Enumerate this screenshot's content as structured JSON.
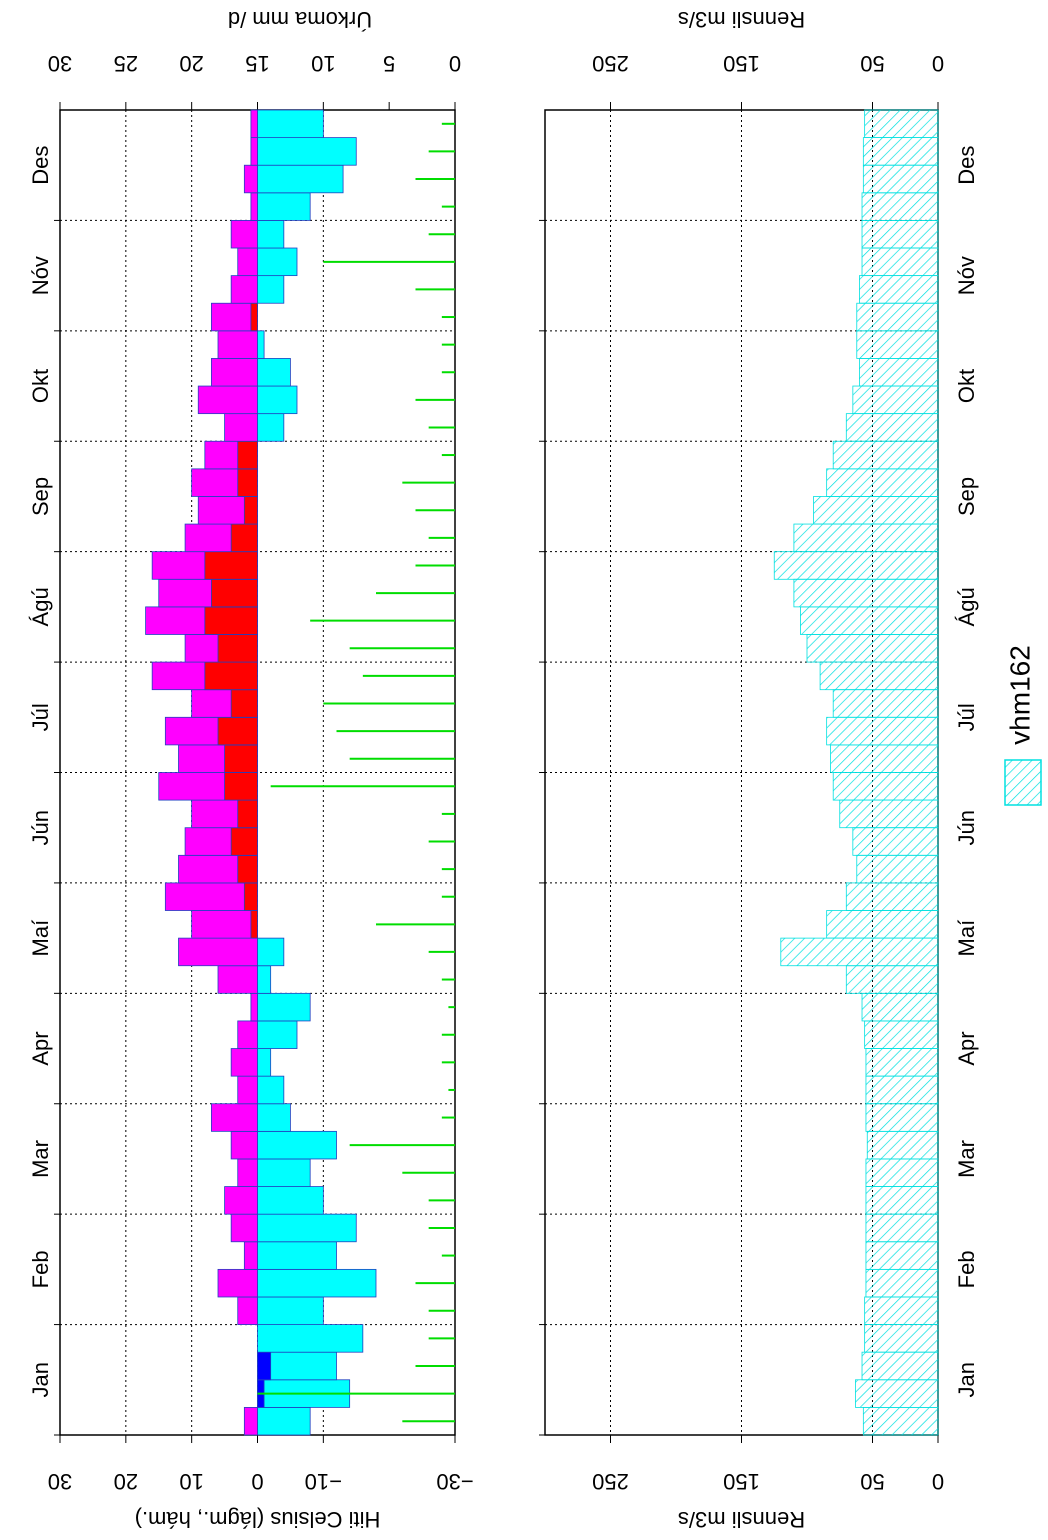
{
  "chart_data": [
    {
      "type": "range",
      "months": [
        "Jan",
        "Feb",
        "Mar",
        "Apr",
        "Maí",
        "Jún",
        "Júl",
        "Ágú",
        "Sep",
        "Okt",
        "Nóv",
        "Des"
      ],
      "ylabel": "Hiti Celsius (lágm., hám.)",
      "ylim": [
        -30,
        30
      ],
      "yticks": [
        {
          "value": -30,
          "label": "−30"
        },
        {
          "value": -10,
          "label": "−10"
        },
        0,
        10,
        20,
        30
      ],
      "y2label": "Úrkoma mm /d",
      "y2lim": [
        0,
        30
      ],
      "y2ticks": [
        0,
        5,
        10,
        15,
        20,
        25,
        30
      ],
      "grid": true,
      "series": [
        {
          "color_pos": "#ff00ff",
          "color_neg": "#0000ff",
          "values": [
            2,
            -1,
            -2,
            0,
            3,
            6,
            2,
            4,
            5,
            3,
            4,
            7,
            3,
            4,
            3,
            1,
            6,
            12,
            10,
            14,
            12,
            11,
            10,
            15,
            12,
            14,
            10,
            16,
            11,
            17,
            15,
            16,
            11,
            9,
            10,
            8,
            5,
            9,
            7,
            6,
            7,
            4,
            3,
            4,
            1,
            2,
            1,
            1
          ]
        },
        {
          "color_pos": "#ff0000",
          "color_neg": "#00ffff",
          "values": [
            -8,
            -14,
            -12,
            -16,
            -10,
            -18,
            -12,
            -15,
            -10,
            -8,
            -12,
            -5,
            -4,
            -2,
            -6,
            -8,
            -2,
            -4,
            1,
            2,
            3,
            4,
            3,
            5,
            5,
            6,
            4,
            8,
            6,
            8,
            7,
            8,
            4,
            2,
            3,
            3,
            -4,
            -6,
            -5,
            -1,
            1,
            -4,
            -6,
            -4,
            -8,
            -13,
            -15,
            -10
          ]
        },
        {
          "axis": "y2",
          "color": "#00dd00",
          "values": [
            4,
            15,
            3,
            2,
            2,
            3,
            1,
            2,
            2,
            4,
            8,
            1,
            0.5,
            1,
            1,
            0.5,
            1,
            2,
            6,
            1,
            1,
            2,
            1,
            14,
            8,
            9,
            10,
            7,
            8,
            11,
            6,
            3,
            2,
            3,
            4,
            1,
            2,
            3,
            1,
            1,
            1,
            3,
            10,
            2,
            1,
            3,
            2,
            1
          ]
        }
      ]
    },
    {
      "type": "area",
      "months": [
        "Jan",
        "Feb",
        "Mar",
        "Apr",
        "Maí",
        "Jún",
        "Júl",
        "Ágú",
        "Sep",
        "Okt",
        "Nóv",
        "Des"
      ],
      "ylabel": "Rennsli m3/s",
      "ylim": [
        0,
        300
      ],
      "yticks": [
        0,
        50,
        150,
        250
      ],
      "grid": true,
      "series": [
        {
          "name": "vhm162",
          "color": "#00e0e0",
          "values": [
            57,
            63,
            58,
            56,
            56,
            55,
            55,
            55,
            55,
            55,
            54,
            55,
            55,
            55,
            56,
            58,
            70,
            120,
            85,
            70,
            62,
            65,
            75,
            80,
            82,
            85,
            80,
            90,
            100,
            105,
            110,
            125,
            110,
            95,
            85,
            80,
            70,
            65,
            60,
            62,
            62,
            60,
            58,
            58,
            58,
            57,
            57,
            56
          ]
        }
      ]
    }
  ]
}
